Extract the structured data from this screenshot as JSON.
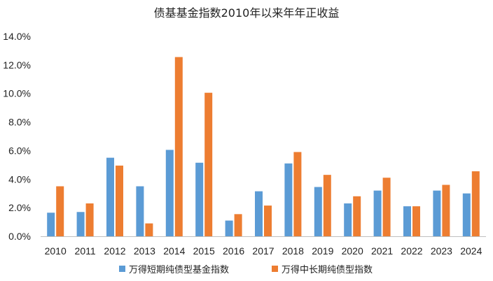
{
  "chart_data": {
    "type": "bar",
    "title": "债基基金指数2010年以来年年正收益",
    "xlabel": "",
    "ylabel": "",
    "categories": [
      "2010",
      "2011",
      "2012",
      "2013",
      "2014",
      "2015",
      "2016",
      "2017",
      "2018",
      "2019",
      "2020",
      "2021",
      "2022",
      "2023",
      "2024"
    ],
    "series": [
      {
        "name": "万得短期纯债型基金指数",
        "color": "#5B9BD5",
        "values": [
          1.65,
          1.7,
          5.5,
          3.5,
          6.05,
          5.15,
          1.1,
          3.15,
          5.1,
          3.45,
          2.3,
          3.2,
          2.1,
          3.2,
          3.0
        ]
      },
      {
        "name": "万得中长期纯债型指数",
        "color": "#ED7D31",
        "values": [
          3.5,
          2.3,
          4.95,
          0.9,
          12.55,
          10.05,
          1.55,
          2.15,
          5.9,
          4.3,
          2.8,
          4.1,
          2.1,
          3.6,
          4.55
        ]
      }
    ],
    "ylim": [
      0,
      14
    ],
    "yticks": [
      0,
      2,
      4,
      6,
      8,
      10,
      12,
      14
    ],
    "ytick_labels": [
      "0.0%",
      "2.0%",
      "4.0%",
      "6.0%",
      "8.0%",
      "10.0%",
      "12.0%",
      "14.0%"
    ],
    "grid": false,
    "legend_position": "bottom"
  }
}
